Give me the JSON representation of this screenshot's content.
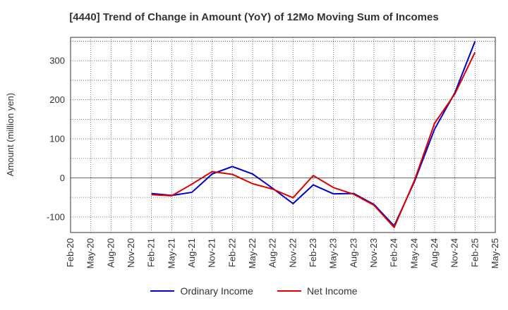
{
  "chart_data": {
    "type": "line",
    "title": "[4440]  Trend of Change in Amount (YoY) of 12Mo Moving Sum of Incomes",
    "ylabel": "Amount (million yen)",
    "xlabel": "",
    "ylim": [
      -140,
      360
    ],
    "yticks": [
      -100,
      0,
      100,
      200,
      300
    ],
    "categories": [
      "Feb-20",
      "May-20",
      "Aug-20",
      "Nov-20",
      "Feb-21",
      "May-21",
      "Aug-21",
      "Nov-21",
      "Feb-22",
      "May-22",
      "Aug-22",
      "Nov-22",
      "Feb-23",
      "May-23",
      "Aug-23",
      "Nov-23",
      "Feb-24",
      "May-24",
      "Aug-24",
      "Nov-24",
      "Feb-25",
      "May-25"
    ],
    "series": [
      {
        "name": "Ordinary Income",
        "color": "#0000cc",
        "values": [
          null,
          null,
          null,
          null,
          -40,
          -45,
          -37,
          10,
          29,
          10,
          -27,
          -66,
          -18,
          -41,
          -40,
          -68,
          -123,
          -10,
          125,
          218,
          350,
          null
        ]
      },
      {
        "name": "Net Income",
        "color": "#dd0000",
        "values": [
          null,
          null,
          null,
          null,
          -43,
          -46,
          -16,
          16,
          9,
          -15,
          -29,
          -51,
          6,
          -25,
          -42,
          -70,
          -127,
          -7,
          140,
          215,
          322,
          null
        ]
      }
    ],
    "grid": true,
    "legend_position": "bottom"
  }
}
